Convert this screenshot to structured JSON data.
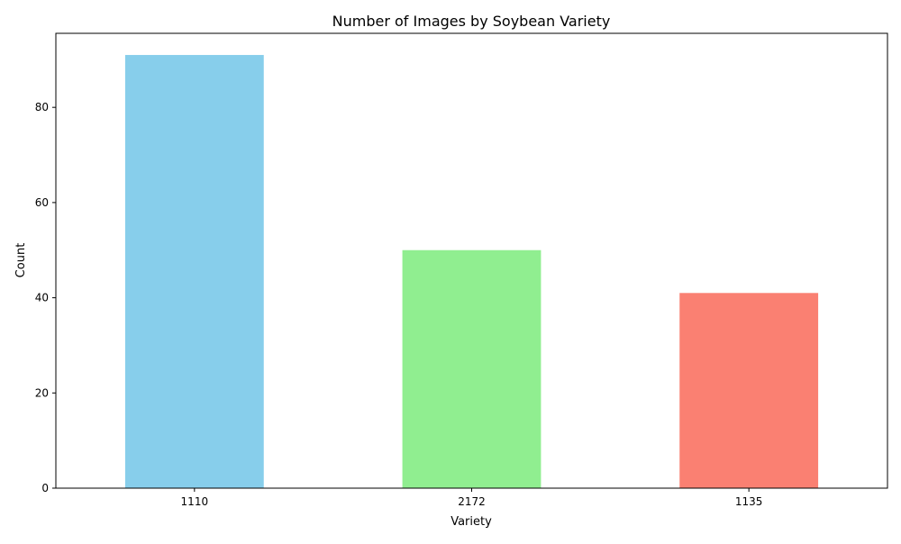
{
  "chart_data": {
    "type": "bar",
    "title": "Number of Images by Soybean Variety",
    "xlabel": "Variety",
    "ylabel": "Count",
    "categories": [
      "1110",
      "2172",
      "1135"
    ],
    "values": [
      91,
      50,
      41
    ],
    "colors": [
      "#87CEEB",
      "#90EE90",
      "#FA8072"
    ],
    "ylim": [
      0,
      95.55
    ],
    "yticks": [
      0,
      20,
      40,
      60,
      80
    ],
    "grid": false,
    "legend": "none"
  }
}
